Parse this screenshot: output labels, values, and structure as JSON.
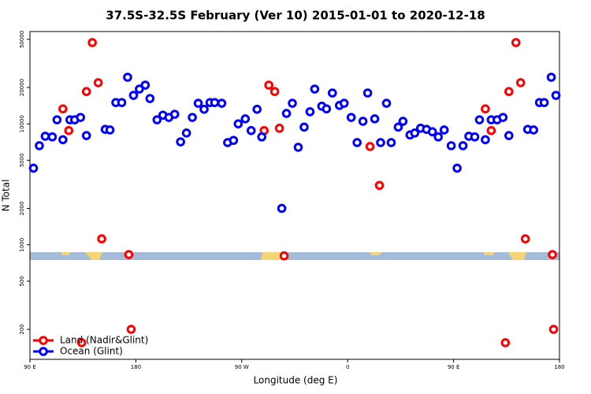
{
  "chart_data": {
    "type": "scatter",
    "title": "37.5S-32.5S February (Ver 10)   2015-01-01 to 2020-12-18",
    "xlabel": "Longitude (deg E)",
    "ylabel": "N Total",
    "xlim": [
      90,
      540
    ],
    "xticks": [
      {
        "value": 90,
        "label": "90 E"
      },
      180,
      {
        "value": 270,
        "label": "90 W"
      },
      {
        "value": 360,
        "label": "0"
      },
      {
        "value": 450,
        "label": "90 E"
      },
      {
        "value": 540,
        "label": "180"
      }
    ],
    "ylim": [
      113,
      58000
    ],
    "yscale": "log",
    "yticks": [
      200,
      500,
      1000,
      2000,
      5000,
      10000,
      20000,
      50000
    ],
    "legend": "bottom-left",
    "series": [
      {
        "name": "Land (Nadir&Glint)",
        "color": "#ff0000",
        "x": [
          118,
          123,
          134,
          138,
          143,
          148,
          151,
          174,
          176,
          289,
          293,
          298,
          302,
          306,
          379,
          387,
          477,
          482,
          494,
          497,
          503,
          507,
          511,
          534,
          535
        ],
        "values": [
          13300,
          8800,
          155,
          18500,
          47000,
          21900,
          1120,
          830,
          200,
          8800,
          20900,
          18500,
          9200,
          810,
          6500,
          3100,
          13300,
          8800,
          155,
          18500,
          47000,
          21900,
          1120,
          830,
          200
        ]
      },
      {
        "name": "Ocean (Glint)",
        "color": "#0000ff",
        "x": [
          93,
          98,
          103,
          109,
          113,
          118,
          124,
          128,
          133,
          138,
          154,
          158,
          163,
          168,
          173,
          178,
          183,
          188,
          192,
          198,
          203,
          208,
          213,
          218,
          223,
          228,
          233,
          238,
          243,
          247,
          253,
          258,
          263,
          267,
          273,
          278,
          283,
          287,
          304,
          308,
          313,
          318,
          323,
          328,
          332,
          338,
          342,
          347,
          353,
          357,
          363,
          368,
          373,
          377,
          383,
          388,
          393,
          397,
          403,
          407,
          413,
          417,
          422,
          427,
          432,
          437,
          442,
          448,
          453,
          458,
          463,
          468,
          472,
          477,
          482,
          487,
          492,
          497,
          513,
          518,
          523,
          527,
          533,
          537
        ],
        "values": [
          4300,
          6600,
          7900,
          7800,
          10800,
          7400,
          10800,
          10800,
          11300,
          8000,
          9000,
          8900,
          15000,
          15000,
          24300,
          17200,
          19400,
          20900,
          16200,
          10800,
          11800,
          11300,
          12000,
          7100,
          8400,
          11300,
          14800,
          13200,
          15000,
          15000,
          14800,
          7000,
          7300,
          10000,
          11000,
          8800,
          13200,
          7800,
          2000,
          12200,
          14800,
          6400,
          9400,
          12600,
          19400,
          14000,
          13300,
          18000,
          14200,
          14800,
          11300,
          7000,
          10500,
          18000,
          11000,
          7000,
          14800,
          7000,
          9400,
          10500,
          8100,
          8400,
          9200,
          9000,
          8600,
          7800,
          8900,
          6600,
          4300,
          6600,
          7900,
          7800,
          10800,
          7400,
          10800,
          10800,
          11300,
          8000,
          9000,
          8900,
          15000,
          15000,
          24300,
          17200
        ]
      }
    ]
  }
}
